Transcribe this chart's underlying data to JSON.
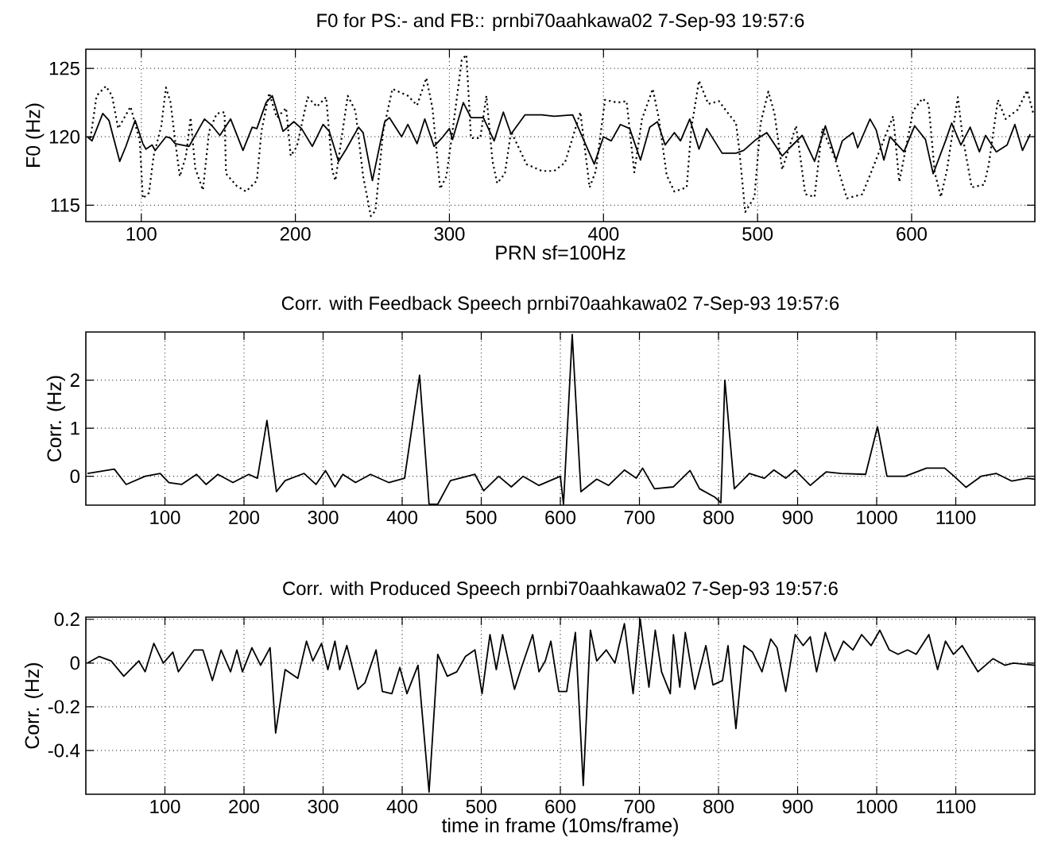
{
  "chart_data": [
    {
      "type": "line",
      "title": "F0 for PS:- and FB::  prnbi70aahkawa02 7-Sep-93 19:57:6",
      "xlabel": "PRN sf=100Hz",
      "ylabel": "F0 (Hz)",
      "xlim": [
        64,
        680
      ],
      "ylim": [
        113.8,
        126.4
      ],
      "xticks": [
        100,
        200,
        300,
        400,
        500,
        600
      ],
      "yticks": [
        115,
        120,
        125
      ],
      "grid": true,
      "series": [
        {
          "color": "#000000",
          "line_style": "solid",
          "x": [
            65,
            68,
            75,
            79,
            86,
            90,
            96,
            101,
            103,
            107,
            109,
            116,
            119,
            122,
            131,
            134,
            141,
            146,
            151,
            158,
            166,
            172,
            175,
            181,
            185,
            192,
            199,
            204,
            211,
            218,
            222,
            228,
            233,
            241,
            244,
            250,
            258,
            261,
            269,
            273,
            279,
            284,
            290,
            295,
            300,
            302,
            309,
            314,
            322,
            329,
            335,
            340,
            349,
            360,
            368,
            380,
            394,
            400,
            405,
            411,
            417,
            424,
            430,
            435,
            440,
            446,
            450,
            456,
            462,
            467,
            477,
            486,
            491,
            499,
            506,
            516,
            521,
            529,
            537,
            544,
            551,
            555,
            562,
            565,
            573,
            577,
            582,
            586,
            595,
            602,
            609,
            614,
            622,
            626,
            632,
            638,
            644,
            648,
            655,
            662,
            667,
            672,
            677
          ],
          "values": [
            120.0,
            119.7,
            121.7,
            121.2,
            118.2,
            119.3,
            121.2,
            119.5,
            119.1,
            119.4,
            119.0,
            120.0,
            119.9,
            119.5,
            119.3,
            119.9,
            121.3,
            120.8,
            120.1,
            121.3,
            119.0,
            120.7,
            120.6,
            122.5,
            123.0,
            120.4,
            121.1,
            120.6,
            119.3,
            120.9,
            120.4,
            118.2,
            119.1,
            120.7,
            120.3,
            116.8,
            121.1,
            121.4,
            120.0,
            120.9,
            119.5,
            121.3,
            119.3,
            119.9,
            120.6,
            119.8,
            122.5,
            121.4,
            121.4,
            119.7,
            121.8,
            120.2,
            121.6,
            121.6,
            121.5,
            121.6,
            118.0,
            120.0,
            119.7,
            120.9,
            120.6,
            118.3,
            120.7,
            121.1,
            119.4,
            120.3,
            119.7,
            121.3,
            119.1,
            120.6,
            118.8,
            118.8,
            119.0,
            119.8,
            120.3,
            118.6,
            119.2,
            120.1,
            118.2,
            120.8,
            118.3,
            119.7,
            120.3,
            119.2,
            121.3,
            120.5,
            118.3,
            120.0,
            118.9,
            120.8,
            119.8,
            117.3,
            119.7,
            121.0,
            119.4,
            120.7,
            118.9,
            120.1,
            118.9,
            119.4,
            120.9,
            119.0,
            120.2
          ]
        },
        {
          "color": "#000000",
          "line_style": "dotted",
          "x": [
            67,
            71,
            77,
            81,
            85,
            93,
            99,
            101,
            105,
            108,
            113,
            116,
            119,
            122,
            125,
            129,
            132,
            135,
            140,
            144,
            149,
            154,
            155,
            162,
            168,
            175,
            178,
            183,
            188,
            194,
            197,
            201,
            208,
            214,
            220,
            224,
            226,
            234,
            239,
            244,
            249,
            252,
            257,
            263,
            273,
            279,
            285,
            289,
            294,
            298,
            302,
            308,
            311,
            314,
            320,
            324,
            328,
            331,
            336,
            340,
            350,
            360,
            368,
            375,
            385,
            391,
            395,
            401,
            409,
            415,
            420,
            425,
            432,
            436,
            441,
            446,
            454,
            457,
            462,
            468,
            475,
            481,
            486,
            488,
            492,
            498,
            502,
            507,
            511,
            516,
            525,
            531,
            537,
            542,
            550,
            558,
            568,
            573,
            588,
            592,
            601,
            607,
            611,
            615,
            619,
            623,
            630,
            633,
            639,
            647,
            650,
            656,
            661,
            669,
            675,
            679
          ],
          "values": [
            119.9,
            123.0,
            123.7,
            123.0,
            120.6,
            122.2,
            119.7,
            115.5,
            115.9,
            118.6,
            120.8,
            123.6,
            122.5,
            119.7,
            117.1,
            118.6,
            121.4,
            117.7,
            116.1,
            120.4,
            121.7,
            121.8,
            117.3,
            116.4,
            116.0,
            116.8,
            120.4,
            123.2,
            121.4,
            122.1,
            118.6,
            119.3,
            122.9,
            122.2,
            122.9,
            117.5,
            116.8,
            123.0,
            121.9,
            117.1,
            114.2,
            114.6,
            120.4,
            123.5,
            123.0,
            122.3,
            124.3,
            122.1,
            116.2,
            117.1,
            120.4,
            125.6,
            126.0,
            119.9,
            119.9,
            123.0,
            118.2,
            116.6,
            117.3,
            120.4,
            118.0,
            117.5,
            117.5,
            118.1,
            121.8,
            116.3,
            117.5,
            122.7,
            122.5,
            122.6,
            117.4,
            121.3,
            123.5,
            121.3,
            117.2,
            116.0,
            116.3,
            120.6,
            124.1,
            122.4,
            122.6,
            121.7,
            121.0,
            119.2,
            114.5,
            115.6,
            121.0,
            123.3,
            121.7,
            117.6,
            120.8,
            115.8,
            115.6,
            120.6,
            118.5,
            115.5,
            115.8,
            117.2,
            121.5,
            116.7,
            121.9,
            122.8,
            122.4,
            117.4,
            115.6,
            117.6,
            122.9,
            120.1,
            116.3,
            116.5,
            117.9,
            122.7,
            121.3,
            122.0,
            123.4,
            121.7
          ]
        }
      ]
    },
    {
      "type": "line",
      "title": "Corr. with Feedback Speech prnbi70aahkawa02 7-Sep-93 19:57:6",
      "ylabel": "Corr. (Hz)",
      "xlim": [
        0,
        1200
      ],
      "ylim": [
        -0.6,
        3
      ],
      "xticks": [
        100,
        200,
        300,
        400,
        500,
        600,
        700,
        800,
        900,
        1000,
        1100
      ],
      "yticks": [
        0,
        1,
        2
      ],
      "grid": true,
      "series": [
        {
          "color": "#000000",
          "line_style": "solid",
          "x": [
            2,
            36,
            51,
            75,
            94,
            105,
            121,
            140,
            152,
            167,
            186,
            206,
            217,
            229,
            241,
            252,
            276,
            291,
            303,
            315,
            325,
            341,
            360,
            383,
            403,
            422,
            434,
            445,
            461,
            492,
            503,
            522,
            538,
            553,
            573,
            600,
            604,
            615,
            626,
            646,
            661,
            681,
            696,
            704,
            719,
            743,
            764,
            776,
            795,
            803,
            808,
            820,
            839,
            858,
            870,
            885,
            897,
            916,
            936,
            955,
            986,
            1001,
            1013,
            1036,
            1063,
            1086,
            1098,
            1113,
            1132,
            1151,
            1171,
            1190,
            1200
          ],
          "values": [
            0.06,
            0.15,
            -0.17,
            0,
            0.06,
            -0.13,
            -0.17,
            0.04,
            -0.17,
            0.04,
            -0.13,
            0.04,
            -0.04,
            1.16,
            -0.32,
            -0.09,
            0.06,
            -0.17,
            0.12,
            -0.22,
            0.04,
            -0.13,
            0.04,
            -0.13,
            -0.04,
            2.1,
            -0.58,
            -0.58,
            -0.09,
            0.04,
            -0.3,
            0,
            -0.22,
            0,
            -0.19,
            0,
            -0.58,
            2.95,
            -0.32,
            -0.06,
            -0.19,
            0.13,
            -0.04,
            0.17,
            -0.26,
            -0.22,
            0.12,
            -0.26,
            -0.43,
            -0.55,
            2.0,
            -0.26,
            0.06,
            -0.04,
            0.13,
            -0.04,
            0.13,
            -0.19,
            0.09,
            0.06,
            0.04,
            1.03,
            0,
            0,
            0.17,
            0.17,
            0,
            -0.23,
            0,
            0.06,
            -0.1,
            -0.04,
            -0.06
          ]
        }
      ]
    },
    {
      "type": "line",
      "title": "Corr. with Produced Speech prnbi70aahkawa02 7-Sep-93 19:57:6",
      "xlabel": "time in frame  (10ms/frame)",
      "ylabel": "Corr. (Hz)",
      "xlim": [
        0,
        1200
      ],
      "ylim": [
        -0.6,
        0.21
      ],
      "xticks": [
        100,
        200,
        300,
        400,
        500,
        600,
        700,
        800,
        900,
        1000,
        1100
      ],
      "yticks": [
        -0.4,
        -0.2,
        0,
        0.2
      ],
      "grid": true,
      "series": [
        {
          "color": "#000000",
          "line_style": "solid",
          "x": [
            2,
            17,
            32,
            48,
            67,
            75,
            86,
            98,
            110,
            117,
            137,
            148,
            160,
            171,
            183,
            191,
            198,
            210,
            221,
            233,
            240,
            252,
            268,
            279,
            287,
            298,
            306,
            315,
            321,
            330,
            344,
            353,
            367,
            375,
            387,
            397,
            406,
            420,
            434,
            445,
            457,
            469,
            480,
            492,
            501,
            511,
            519,
            527,
            542,
            550,
            565,
            573,
            581,
            588,
            598,
            608,
            619,
            629,
            638,
            646,
            658,
            669,
            681,
            692,
            701,
            712,
            720,
            728,
            739,
            743,
            751,
            758,
            770,
            784,
            793,
            805,
            812,
            822,
            832,
            843,
            855,
            866,
            874,
            885,
            897,
            907,
            916,
            924,
            935,
            947,
            958,
            970,
            981,
            993,
            1004,
            1016,
            1027,
            1039,
            1050,
            1066,
            1077,
            1087,
            1097,
            1108,
            1128,
            1147,
            1162,
            1173,
            1200
          ],
          "values": [
            0,
            0.03,
            0.01,
            -0.06,
            0.01,
            -0.04,
            0.09,
            0,
            0.05,
            -0.04,
            0.06,
            0.06,
            -0.08,
            0.06,
            -0.04,
            0.06,
            -0.04,
            0.07,
            -0.01,
            0.07,
            -0.32,
            -0.03,
            -0.07,
            0.1,
            0.01,
            0.09,
            -0.03,
            0.1,
            -0.03,
            0.08,
            -0.12,
            -0.09,
            0.06,
            -0.13,
            -0.14,
            -0.02,
            -0.14,
            -0.01,
            -0.59,
            0.04,
            -0.06,
            -0.04,
            0.03,
            0.06,
            -0.14,
            0.13,
            -0.03,
            0.13,
            -0.12,
            -0.03,
            0.13,
            -0.04,
            0.01,
            0.1,
            -0.13,
            -0.13,
            0.14,
            -0.56,
            0.15,
            0.01,
            0.06,
            0,
            0.18,
            -0.14,
            0.2,
            -0.11,
            0.15,
            -0.04,
            -0.14,
            0.13,
            -0.11,
            0.14,
            -0.12,
            0.08,
            -0.1,
            -0.08,
            0.08,
            -0.3,
            0.08,
            0.05,
            -0.04,
            0.11,
            0.07,
            -0.13,
            0.13,
            0.08,
            0.12,
            -0.04,
            0.14,
            0.01,
            0.1,
            0.06,
            0.13,
            0.08,
            0.15,
            0.06,
            0.04,
            0.06,
            0.04,
            0.13,
            -0.03,
            0.1,
            0.04,
            0.08,
            -0.04,
            0.02,
            -0.01,
            0,
            -0.01
          ]
        }
      ]
    }
  ]
}
